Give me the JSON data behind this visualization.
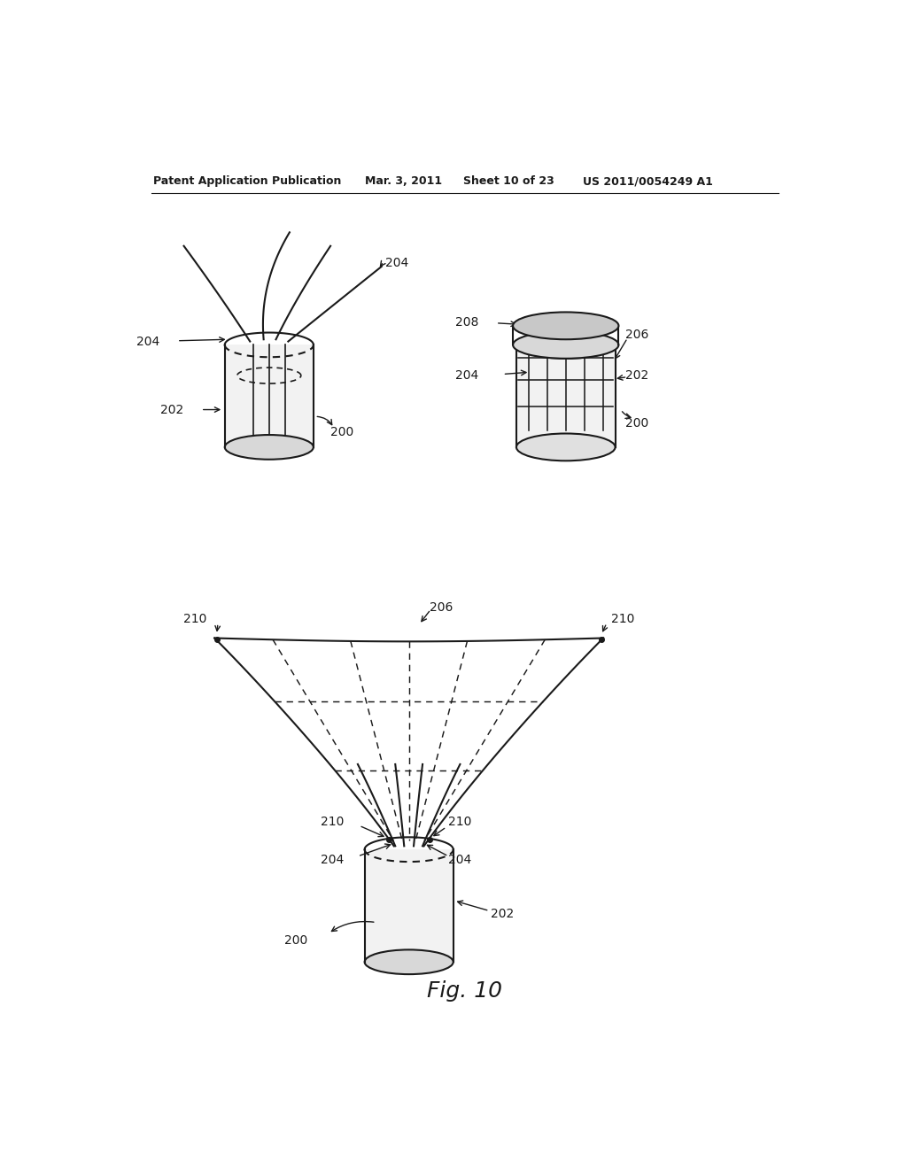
{
  "background_color": "#ffffff",
  "line_color": "#1a1a1a",
  "header_text": "Patent Application Publication",
  "header_date": "Mar. 3, 2011",
  "header_sheet": "Sheet 10 of 23",
  "header_patent": "US 2011/0054249 A1",
  "figure_label": "Fig. 10"
}
